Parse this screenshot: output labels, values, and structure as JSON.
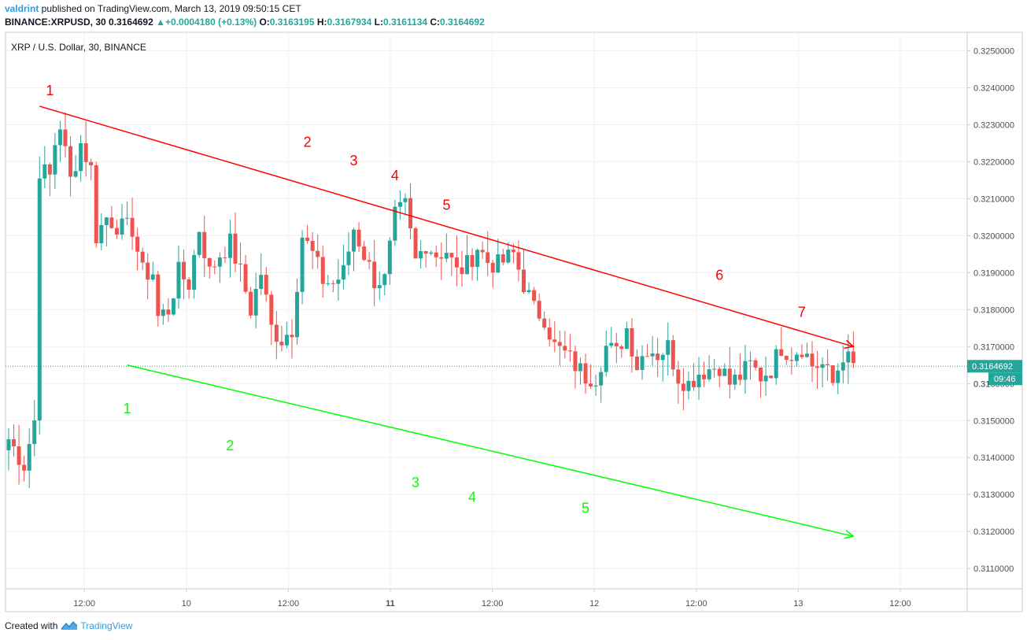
{
  "header": {
    "user": "valdrint",
    "published_text": " published on TradingView.com, March 13, 2019 09:50:15 CET",
    "symbol_line": "BINANCE:XRPUSD, 30",
    "last_price": "0.3164692",
    "change_arrow": "▲",
    "change": "+0.0004180 (+0.13%)",
    "o_label": "O:",
    "o_value": "0.3163195",
    "h_label": "H:",
    "h_value": "0.3167934",
    "l_label": "L:",
    "l_value": "0.3161134",
    "c_label": "C:",
    "c_value": "0.3164692"
  },
  "footer": {
    "created_with": "Created with",
    "brand": "TradingView",
    "logo_icon": "tradingview-logo-icon"
  },
  "colors": {
    "up": "#26a69a",
    "down": "#ef5350",
    "resistance": "#ff0000",
    "support": "#00ff00",
    "price_line": "#26a69a",
    "brand": "#2f9be5"
  },
  "chart_data": {
    "type": "candlestick",
    "title": "XRP / U.S. Dollar, 30, BINANCE",
    "interval": "30",
    "ylim": [
      0.31045,
      0.3255
    ],
    "y_ticks": [
      "0.3110000",
      "0.3120000",
      "0.3130000",
      "0.3140000",
      "0.3150000",
      "0.3160000",
      "0.3170000",
      "0.3180000",
      "0.3190000",
      "0.3200000",
      "0.3210000",
      "0.3220000",
      "0.3230000",
      "0.3240000",
      "0.3250000"
    ],
    "x_ticks": [
      "12:00",
      "10",
      "12:00",
      "11",
      "12:00",
      "12",
      "12:00",
      "13",
      "12:00"
    ],
    "x_tick_bold": [
      false,
      false,
      false,
      true,
      false,
      false,
      false,
      false,
      false
    ],
    "current_price_label": "0.3164692",
    "countdown_label": "09:46",
    "hidden_tick_text": "0.31",
    "grid": true,
    "candle_count": 165,
    "anchors": [
      [
        0,
        0.3145
      ],
      [
        3,
        0.3138
      ],
      [
        5,
        0.315
      ],
      [
        6,
        0.3218
      ],
      [
        8,
        0.3216
      ],
      [
        9,
        0.3225
      ],
      [
        10,
        0.323
      ],
      [
        12,
        0.3215
      ],
      [
        14,
        0.3225
      ],
      [
        16,
        0.3218
      ],
      [
        17,
        0.32
      ],
      [
        19,
        0.3205
      ],
      [
        22,
        0.3202
      ],
      [
        24,
        0.3202
      ],
      [
        26,
        0.319
      ],
      [
        28,
        0.319
      ],
      [
        29,
        0.3178
      ],
      [
        31,
        0.318
      ],
      [
        33,
        0.319
      ],
      [
        35,
        0.3187
      ],
      [
        37,
        0.3202
      ],
      [
        39,
        0.319
      ],
      [
        41,
        0.3195
      ],
      [
        43,
        0.3198
      ],
      [
        45,
        0.319
      ],
      [
        47,
        0.318
      ],
      [
        49,
        0.319
      ],
      [
        51,
        0.3175
      ],
      [
        53,
        0.3172
      ],
      [
        55,
        0.3175
      ],
      [
        57,
        0.32
      ],
      [
        59,
        0.3195
      ],
      [
        61,
        0.3188
      ],
      [
        63,
        0.3187
      ],
      [
        65,
        0.319
      ],
      [
        67,
        0.3202
      ],
      [
        69,
        0.3195
      ],
      [
        71,
        0.3188
      ],
      [
        73,
        0.3188
      ],
      [
        75,
        0.3205
      ],
      [
        77,
        0.3208
      ],
      [
        79,
        0.3193
      ],
      [
        81,
        0.3198
      ],
      [
        83,
        0.3195
      ],
      [
        85,
        0.3196
      ],
      [
        87,
        0.319
      ],
      [
        89,
        0.3192
      ],
      [
        91,
        0.3197
      ],
      [
        93,
        0.3193
      ],
      [
        95,
        0.3192
      ],
      [
        98,
        0.3195
      ],
      [
        100,
        0.3187
      ],
      [
        102,
        0.318
      ],
      [
        104,
        0.3178
      ],
      [
        106,
        0.317
      ],
      [
        108,
        0.3168
      ],
      [
        110,
        0.3165
      ],
      [
        112,
        0.3162
      ],
      [
        114,
        0.3162
      ],
      [
        116,
        0.317
      ],
      [
        118,
        0.3168
      ],
      [
        120,
        0.3175
      ],
      [
        122,
        0.3165
      ],
      [
        124,
        0.317
      ],
      [
        126,
        0.3168
      ],
      [
        128,
        0.317
      ],
      [
        130,
        0.3162
      ],
      [
        132,
        0.316
      ],
      [
        134,
        0.3163
      ],
      [
        136,
        0.3164
      ],
      [
        138,
        0.3165
      ],
      [
        140,
        0.316
      ],
      [
        142,
        0.3162
      ],
      [
        144,
        0.3165
      ],
      [
        146,
        0.3162
      ],
      [
        148,
        0.3164
      ],
      [
        150,
        0.317
      ],
      [
        152,
        0.3168
      ],
      [
        154,
        0.317
      ],
      [
        156,
        0.3165
      ],
      [
        158,
        0.3165
      ],
      [
        160,
        0.316
      ],
      [
        162,
        0.3168
      ],
      [
        164,
        0.31646
      ]
    ],
    "resistance_line": {
      "start": [
        6,
        0.3235
      ],
      "end": [
        164,
        0.317
      ],
      "arrow": true
    },
    "support_line": {
      "start": [
        23,
        0.3165
      ],
      "end": [
        164,
        0.31187
      ],
      "arrow": true
    },
    "resistance_labels": [
      {
        "text": "1",
        "i": 8,
        "y": 0.3238
      },
      {
        "text": "2",
        "i": 58,
        "y": 0.3224
      },
      {
        "text": "3",
        "i": 67,
        "y": 0.3219
      },
      {
        "text": "4",
        "i": 75,
        "y": 0.3215
      },
      {
        "text": "5",
        "i": 85,
        "y": 0.3207
      },
      {
        "text": "6",
        "i": 138,
        "y": 0.3188
      },
      {
        "text": "7",
        "i": 154,
        "y": 0.3178
      }
    ],
    "support_labels": [
      {
        "text": "1",
        "i": 23,
        "y": 0.3152
      },
      {
        "text": "2",
        "i": 43,
        "y": 0.3142
      },
      {
        "text": "3",
        "i": 79,
        "y": 0.3132
      },
      {
        "text": "4",
        "i": 90,
        "y": 0.3128
      },
      {
        "text": "5",
        "i": 112,
        "y": 0.3125
      }
    ]
  }
}
